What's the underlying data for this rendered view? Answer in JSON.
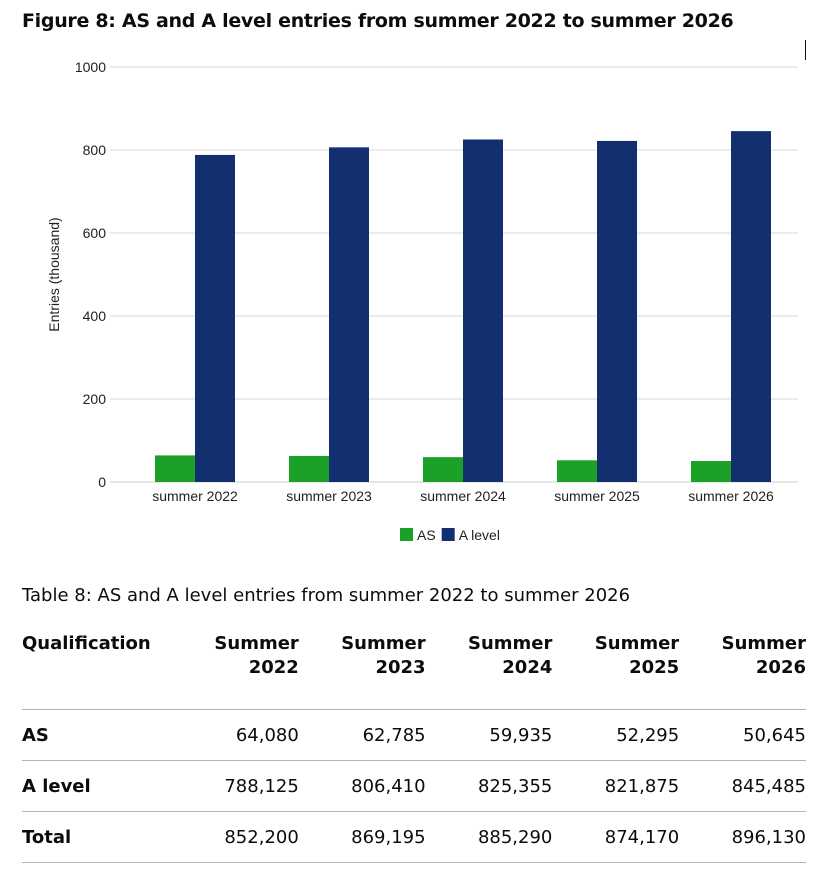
{
  "figure_title": "Figure 8: AS and A level entries from summer 2022 to summer 2026",
  "chart_data": {
    "type": "bar",
    "categories": [
      "summer 2022",
      "summer 2023",
      "summer 2024",
      "summer 2025",
      "summer 2026"
    ],
    "series": [
      {
        "name": "AS",
        "values": [
          64.08,
          62.785,
          59.935,
          52.295,
          50.645
        ],
        "color": "#1ba128"
      },
      {
        "name": "A level",
        "values": [
          788.125,
          806.41,
          825.355,
          821.875,
          845.485
        ],
        "color": "#12306f"
      }
    ],
    "ylabel": "Entries (thousand)",
    "xlabel": "",
    "ylim": [
      0,
      1000
    ],
    "yticks": [
      0,
      200,
      400,
      600,
      800,
      1000
    ],
    "grid": true,
    "legend": "bottom-center"
  },
  "table": {
    "caption": "Table 8: AS and A level entries from summer 2022 to summer 2026",
    "header_first": "Qualification",
    "headers": [
      [
        "Summer",
        "2022"
      ],
      [
        "Summer",
        "2023"
      ],
      [
        "Summer",
        "2024"
      ],
      [
        "Summer",
        "2025"
      ],
      [
        "Summer",
        "2026"
      ]
    ],
    "rows": [
      {
        "label": "AS",
        "values": [
          "64,080",
          "62,785",
          "59,935",
          "52,295",
          "50,645"
        ]
      },
      {
        "label": "A level",
        "values": [
          "788,125",
          "806,410",
          "825,355",
          "821,875",
          "845,485"
        ]
      },
      {
        "label": "Total",
        "values": [
          "852,200",
          "869,195",
          "885,290",
          "874,170",
          "896,130"
        ]
      }
    ]
  }
}
